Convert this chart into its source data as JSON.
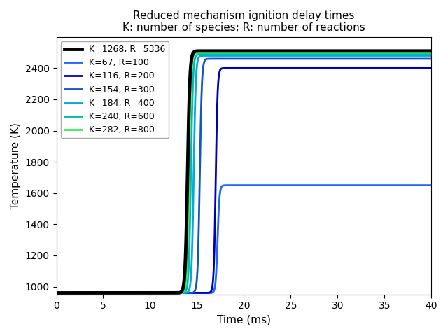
{
  "title": "Reduced mechanism ignition delay times\nK: number of species; R: number of reactions",
  "xlabel": "Time (ms)",
  "ylabel": "Temperature (K)",
  "xlim": [
    0,
    40
  ],
  "ylim": [
    950,
    2600
  ],
  "yticks": [
    1000,
    1200,
    1400,
    1600,
    1800,
    2000,
    2200,
    2400
  ],
  "xticks": [
    0,
    5,
    10,
    15,
    20,
    25,
    30,
    35,
    40
  ],
  "series": [
    {
      "label": "K=1268, R=5336",
      "color": "#000000",
      "linewidth": 3.5,
      "ignition_time": 14.0,
      "T_initial": 960,
      "T_final": 2510,
      "steepness": 8.0,
      "shape": "normal"
    },
    {
      "label": "K=282, R=800",
      "color": "#33ee55",
      "linewidth": 2.0,
      "ignition_time": 14.15,
      "T_initial": 960,
      "T_final": 2500,
      "steepness": 9.0,
      "shape": "normal"
    },
    {
      "label": "K=240, R=600",
      "color": "#00bbaa",
      "linewidth": 2.0,
      "ignition_time": 14.35,
      "T_initial": 960,
      "T_final": 2490,
      "steepness": 9.0,
      "shape": "normal"
    },
    {
      "label": "K=184, R=400",
      "color": "#00aadd",
      "linewidth": 2.0,
      "ignition_time": 14.65,
      "T_initial": 960,
      "T_final": 2480,
      "steepness": 9.0,
      "shape": "normal"
    },
    {
      "label": "K=154, R=300",
      "color": "#1155cc",
      "linewidth": 2.0,
      "ignition_time": 15.3,
      "T_initial": 960,
      "T_final": 2460,
      "steepness": 9.0,
      "shape": "normal"
    },
    {
      "label": "K=116, R=200",
      "color": "#0000bb",
      "linewidth": 2.0,
      "ignition_time": 17.0,
      "T_initial": 960,
      "T_final": 2400,
      "steepness": 10.0,
      "shape": "normal"
    },
    {
      "label": "K=67, R=100",
      "color": "#1a66ff",
      "linewidth": 2.0,
      "ignition_time": 17.2,
      "T_initial": 960,
      "T_final": 1650,
      "steepness": 10.0,
      "shape": "normal"
    }
  ],
  "legend_label_order_indices": [
    0,
    6,
    5,
    4,
    3,
    2,
    1
  ],
  "figsize": [
    6.4,
    4.8
  ],
  "dpi": 100,
  "background_color": "#ffffff"
}
